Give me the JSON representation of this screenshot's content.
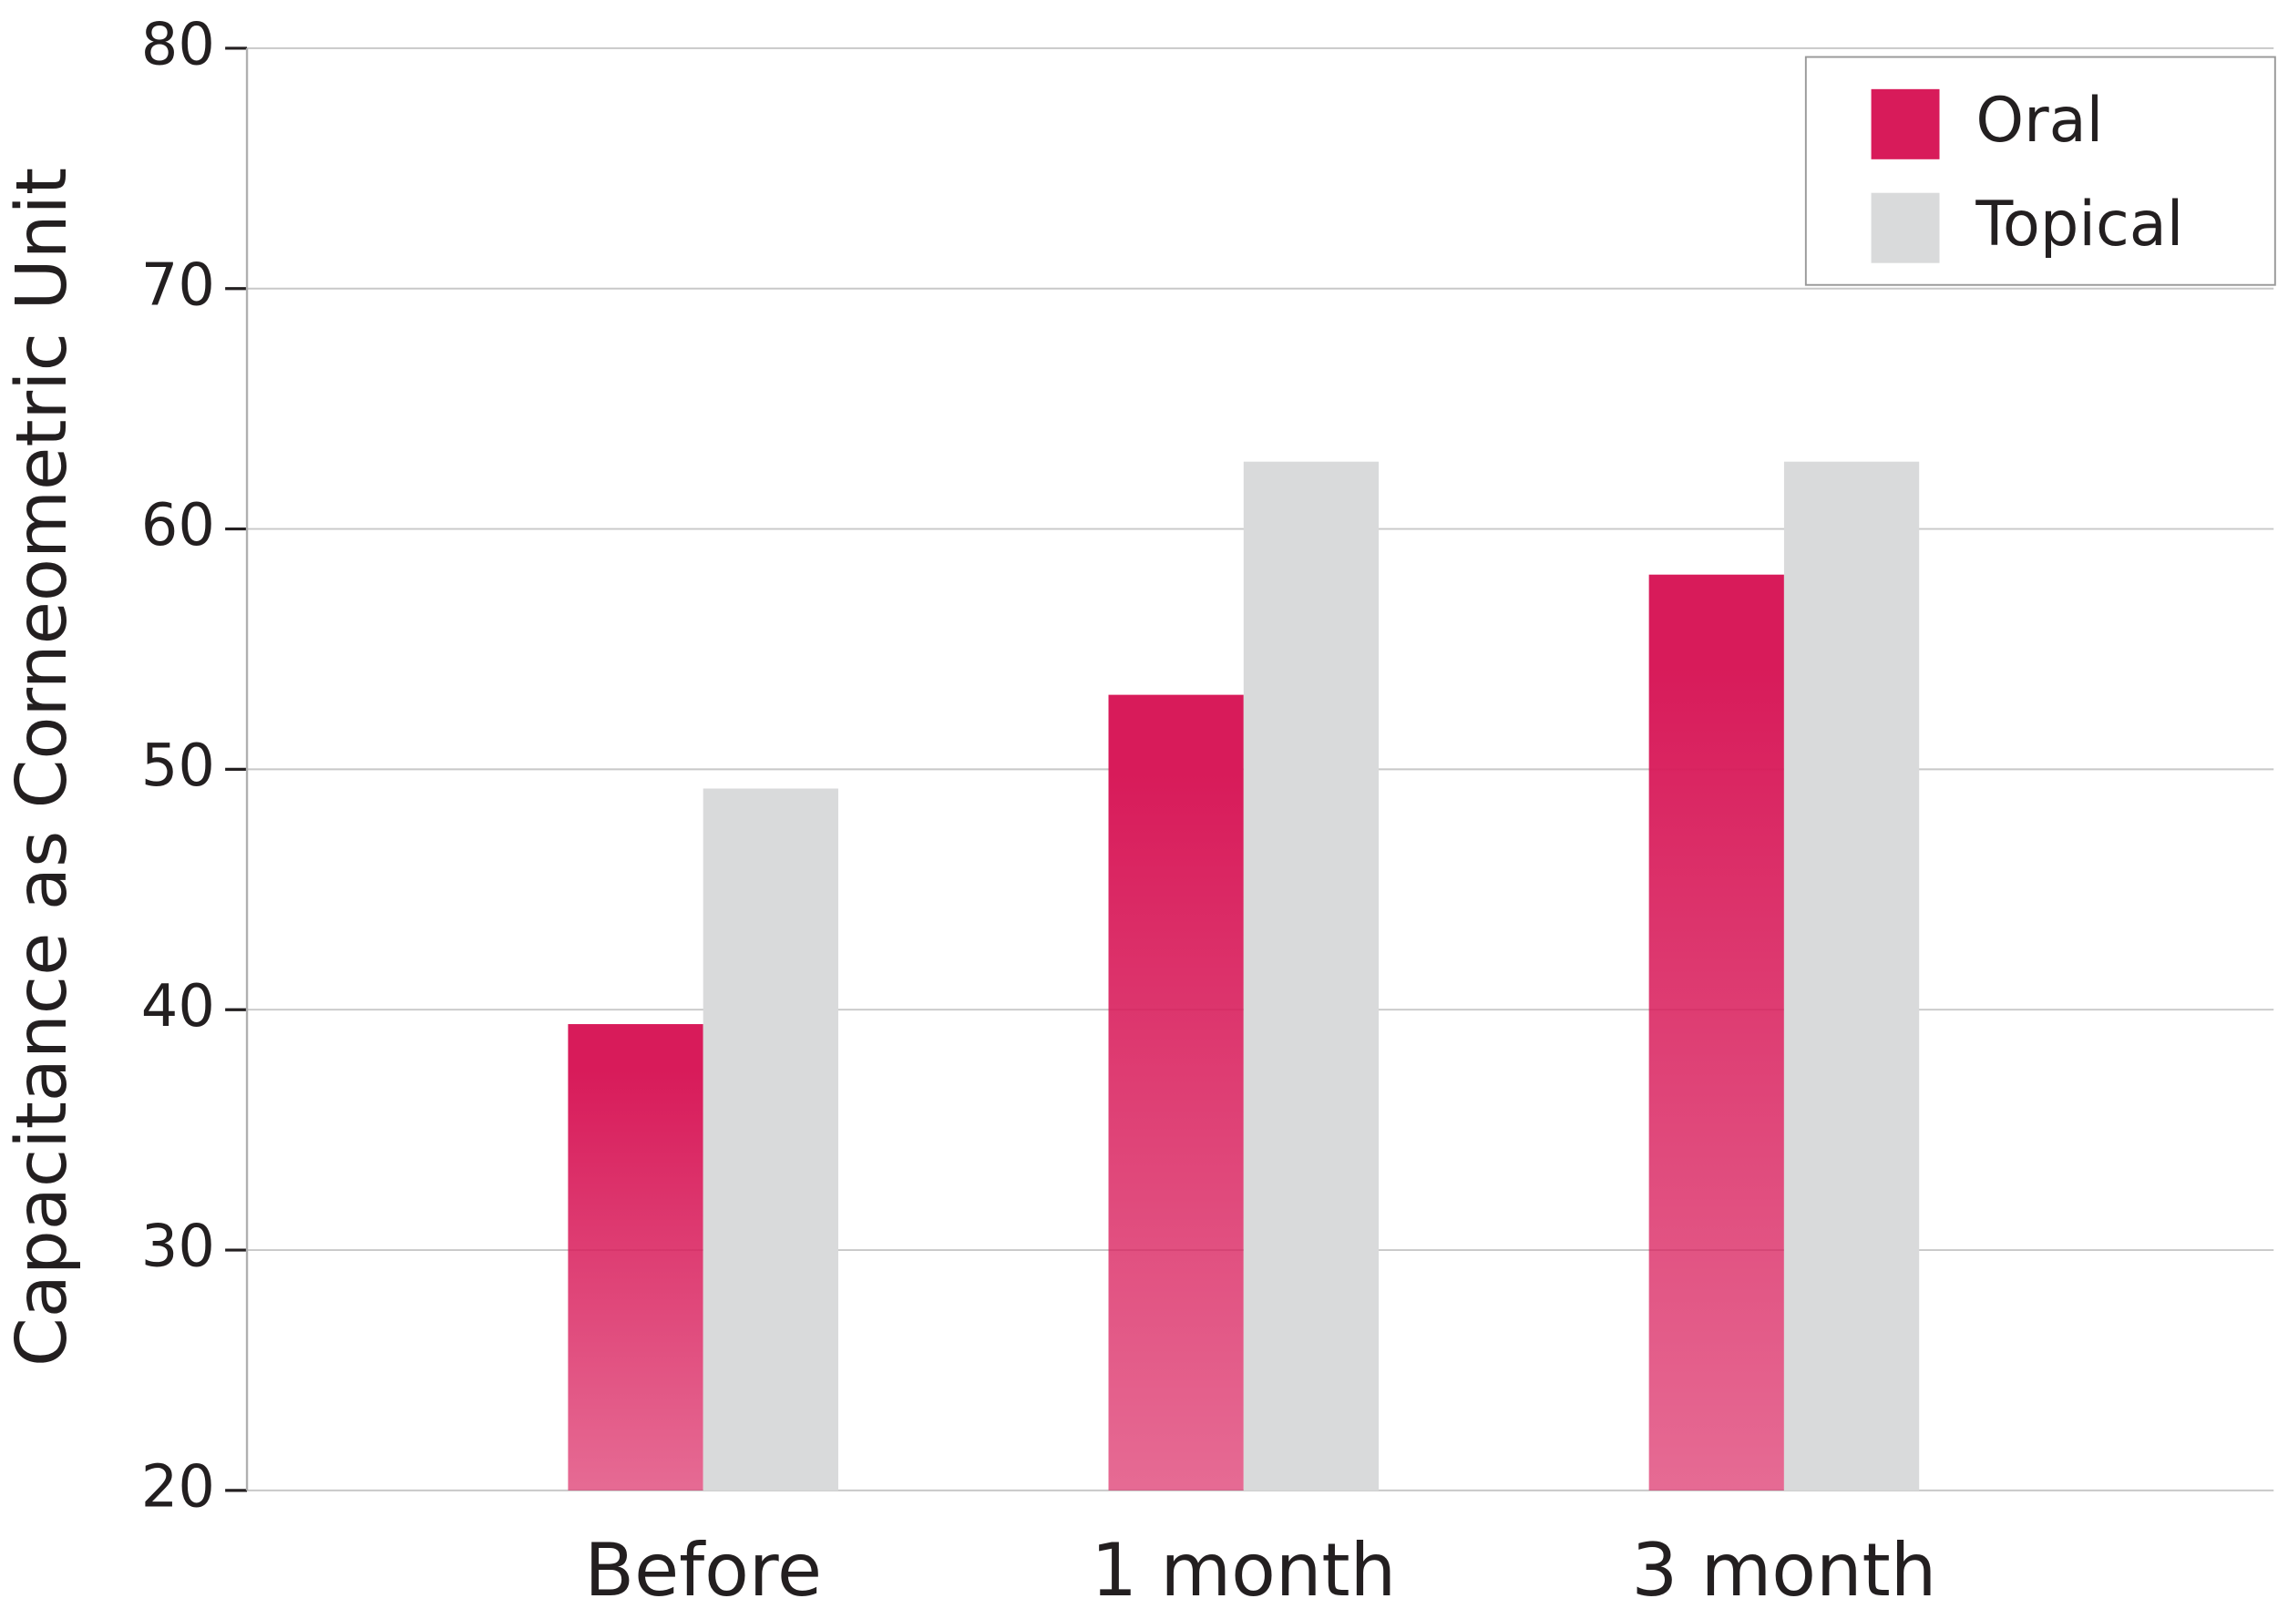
{
  "chart_data": {
    "type": "bar",
    "y_label": "Capacitance as Corneometric Unit",
    "categories": [
      "Before",
      "1 month",
      "3 month"
    ],
    "series": [
      {
        "name": "Oral",
        "color": "#d81b5a",
        "values": [
          39.4,
          53.1,
          58.1
        ]
      },
      {
        "name": "Topical",
        "color": "#d9dadb",
        "values": [
          49.2,
          62.8,
          62.8
        ]
      }
    ],
    "ylim": [
      20,
      80
    ],
    "yticks": [
      20,
      30,
      40,
      50,
      60,
      70,
      80
    ],
    "grid": true,
    "legend": "top-right"
  }
}
